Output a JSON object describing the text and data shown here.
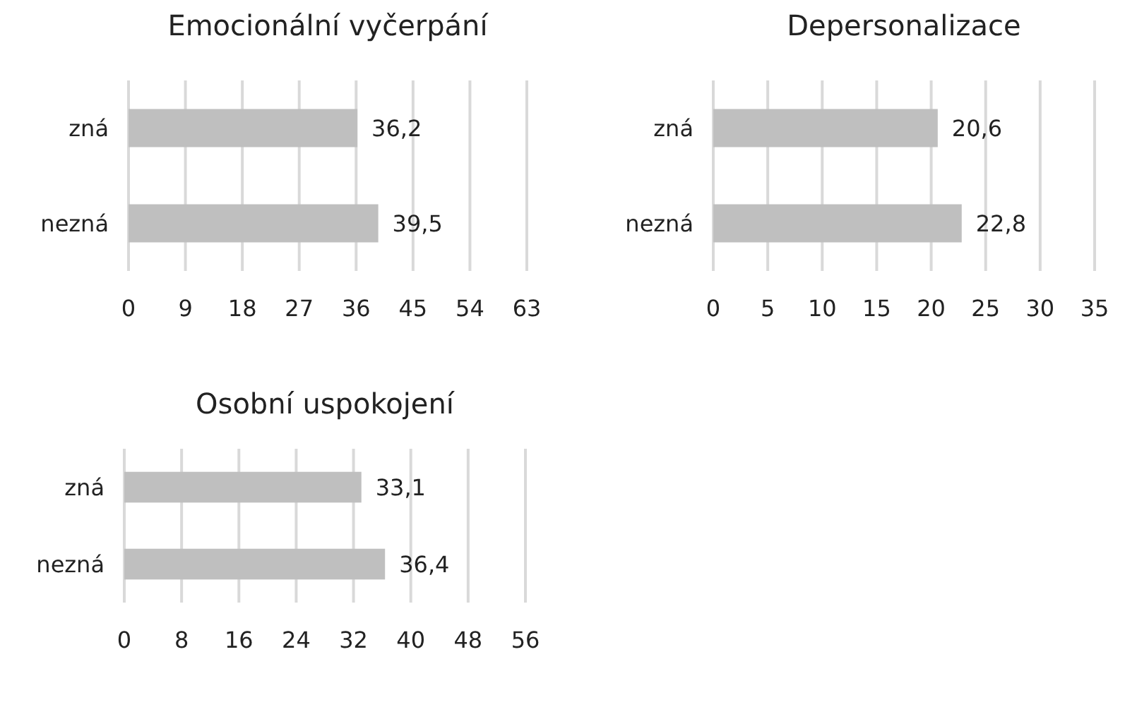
{
  "chart_data": [
    {
      "type": "bar",
      "orientation": "horizontal",
      "title": "Emocionální vyčerpání",
      "categories": [
        "zná",
        "nezná"
      ],
      "values": [
        36.2,
        39.5
      ],
      "value_labels": [
        "36,2",
        "39,5"
      ],
      "color": "#bfbfbf",
      "xlim": [
        0,
        63
      ],
      "xticks": [
        0,
        9,
        18,
        27,
        36,
        45,
        54,
        63
      ],
      "grid": "x"
    },
    {
      "type": "bar",
      "orientation": "horizontal",
      "title": "Depersonalizace",
      "categories": [
        "zná",
        "nezná"
      ],
      "values": [
        20.6,
        22.8
      ],
      "value_labels": [
        "20,6",
        "22,8"
      ],
      "color": "#bfbfbf",
      "xlim": [
        0,
        35
      ],
      "xticks": [
        0,
        5,
        10,
        15,
        20,
        25,
        30,
        35
      ],
      "grid": "x"
    },
    {
      "type": "bar",
      "orientation": "horizontal",
      "title": "Osobní uspokojení",
      "categories": [
        "zná",
        "nezná"
      ],
      "values": [
        33.1,
        36.4
      ],
      "value_labels": [
        "33,1",
        "36,4"
      ],
      "color": "#bfbfbf",
      "xlim": [
        0,
        56
      ],
      "xticks": [
        0,
        8,
        16,
        24,
        32,
        40,
        48,
        56
      ],
      "grid": "x"
    }
  ]
}
